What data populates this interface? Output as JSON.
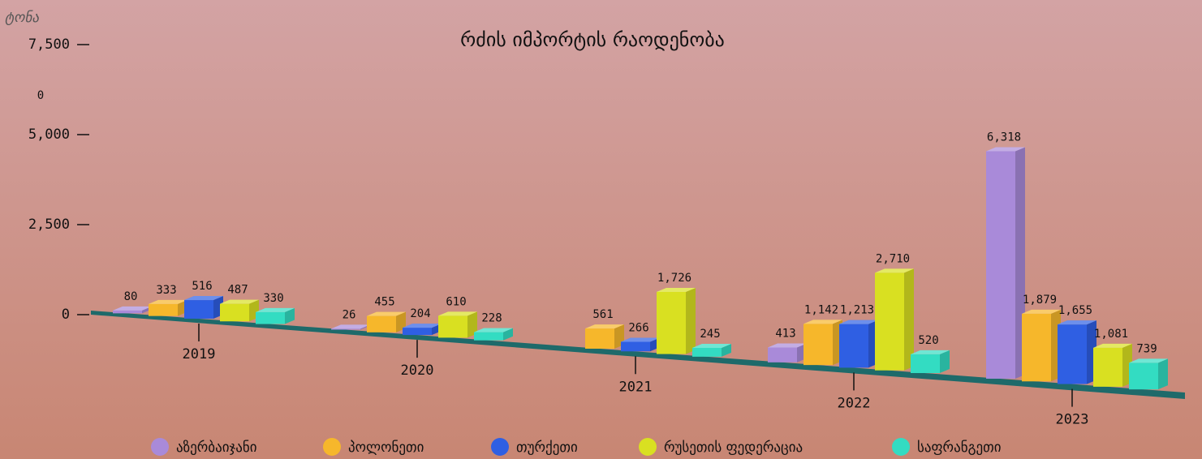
{
  "chart_data": {
    "type": "bar3d",
    "title": "რძის იმპორტის რაოდენობა",
    "y_label": "ტონა",
    "annotations": [
      "0"
    ],
    "categories": [
      "2019",
      "2020",
      "2021",
      "2022",
      "2023"
    ],
    "series": [
      {
        "name": "აზერბაიჯანი",
        "color": "#a98ad9",
        "values": [
          80,
          26,
          null,
          413,
          6318
        ],
        "value_labels": [
          "80",
          "26",
          null,
          "413",
          "6,318"
        ]
      },
      {
        "name": "პოლონეთი",
        "color": "#f6b72b",
        "values": [
          333,
          455,
          561,
          1142,
          1879
        ],
        "value_labels": [
          "333",
          "455",
          "561",
          "1,142",
          "1,879"
        ]
      },
      {
        "name": "თურქეთი",
        "color": "#2f5fe3",
        "values": [
          516,
          204,
          266,
          1213,
          1655
        ],
        "value_labels": [
          "516",
          "204",
          "266",
          "1,213",
          "1,655"
        ]
      },
      {
        "name": "რუსეთის ფედერაცია",
        "color": "#d9e021",
        "values": [
          487,
          610,
          1726,
          2710,
          1081
        ],
        "value_labels": [
          "487",
          "610",
          "1,726",
          "2,710",
          "1,081"
        ]
      },
      {
        "name": "საფრანგეთი",
        "color": "#33dcc2",
        "values": [
          330,
          228,
          245,
          520,
          739
        ],
        "value_labels": [
          "330",
          "228",
          "245",
          "520",
          "739"
        ]
      }
    ],
    "ylim": [
      0,
      7500
    ],
    "yticks": [
      0,
      {
        "value": 2500,
        "label": "2,500"
      },
      {
        "value": 5000,
        "label": "5,000"
      },
      {
        "value": 7500,
        "label": "7,500"
      }
    ],
    "legend": "bottom"
  }
}
